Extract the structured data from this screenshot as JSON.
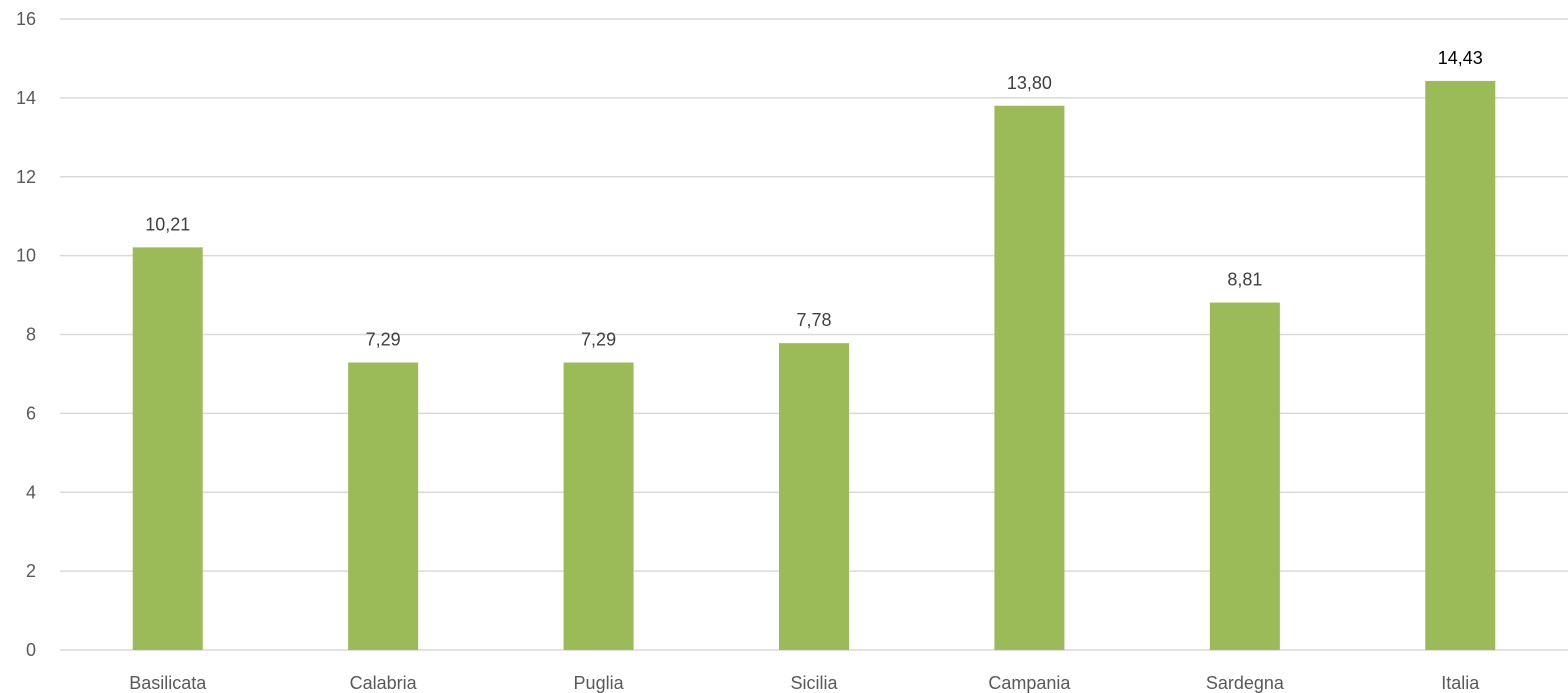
{
  "chart_data": {
    "type": "bar",
    "categories": [
      "Basilicata",
      "Calabria",
      "Puglia",
      "Sicilia",
      "Campania",
      "Sardegna",
      "Italia"
    ],
    "values": [
      10.21,
      7.29,
      7.29,
      7.78,
      13.8,
      8.81,
      14.43
    ],
    "value_labels": [
      "10,21",
      "7,29",
      "7,29",
      "7,78",
      "13,80",
      "8,81",
      "14,43"
    ],
    "y_ticks": [
      "0",
      "2",
      "4",
      "6",
      "8",
      "10",
      "12",
      "14",
      "16"
    ],
    "ylim": [
      0,
      16
    ],
    "title": "",
    "xlabel": "",
    "ylabel": "",
    "grid": true,
    "legend": "none",
    "bar_color": "#9bbb59",
    "grid_color": "#d9d9d9",
    "tick_color": "#595959",
    "label_color": "#404040"
  }
}
